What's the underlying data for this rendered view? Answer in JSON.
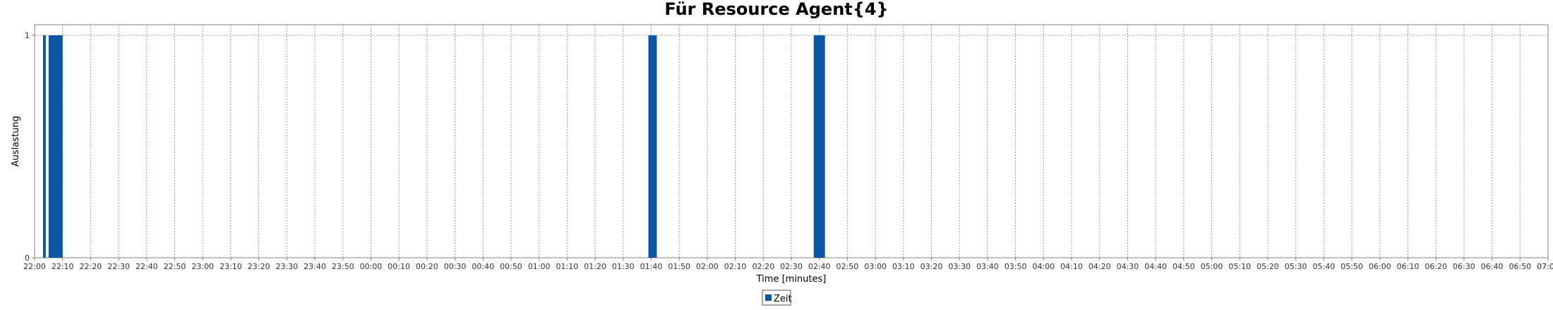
{
  "chart_data": {
    "type": "bar",
    "title": "Für Resource Agent{4}",
    "xlabel": "Time [minutes]",
    "ylabel": "Auslastung",
    "ylim": [
      0,
      1
    ],
    "yticks": [
      "0",
      "1"
    ],
    "xlim": [
      "22:00",
      "07:00"
    ],
    "xticks": [
      "22:00",
      "22:10",
      "22:20",
      "22:30",
      "22:40",
      "22:50",
      "23:00",
      "23:10",
      "23:20",
      "23:30",
      "23:40",
      "23:50",
      "00:00",
      "00:10",
      "00:20",
      "00:30",
      "00:40",
      "00:50",
      "01:00",
      "01:10",
      "01:20",
      "01:30",
      "01:40",
      "01:50",
      "02:00",
      "02:10",
      "02:20",
      "02:30",
      "02:40",
      "02:50",
      "03:00",
      "03:10",
      "03:20",
      "03:30",
      "03:40",
      "03:50",
      "04:00",
      "04:10",
      "04:20",
      "04:30",
      "04:40",
      "04:50",
      "05:00",
      "05:10",
      "05:20",
      "05:30",
      "05:40",
      "05:50",
      "06:00",
      "06:10",
      "06:20",
      "06:30",
      "06:40",
      "06:50",
      "07:00"
    ],
    "grid": true,
    "legend_position": "bottom-center",
    "series": [
      {
        "name": "Zeit",
        "color": "#0b56a3",
        "intervals": [
          {
            "start": "22:03",
            "end": "22:04",
            "value": 1
          },
          {
            "start": "22:05",
            "end": "22:10",
            "value": 1
          },
          {
            "start": "01:39",
            "end": "01:42",
            "value": 1
          },
          {
            "start": "02:38",
            "end": "02:42",
            "value": 1
          }
        ]
      }
    ]
  }
}
